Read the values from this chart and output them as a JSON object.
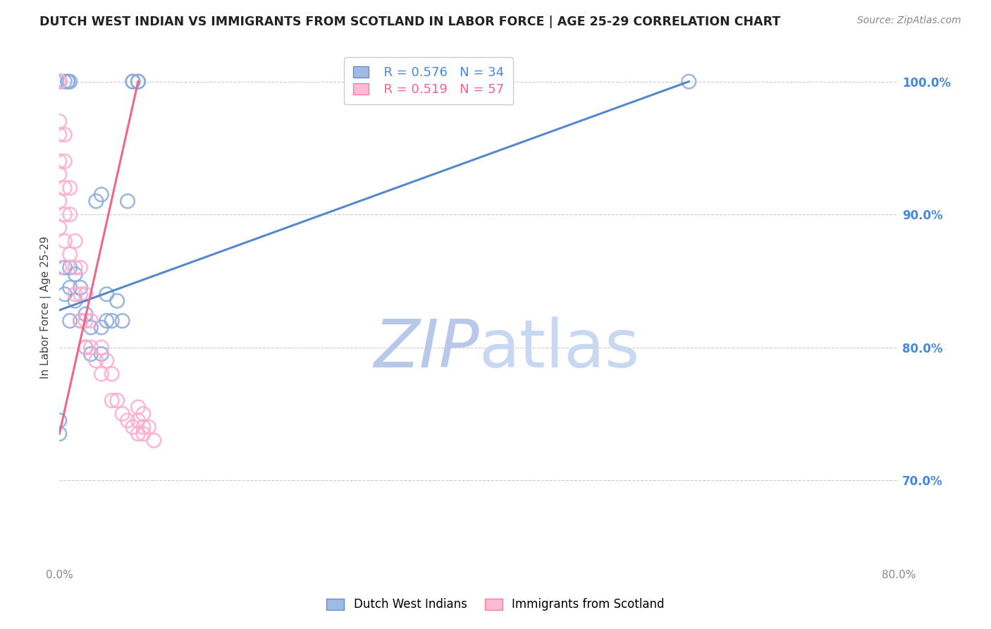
{
  "title": "DUTCH WEST INDIAN VS IMMIGRANTS FROM SCOTLAND IN LABOR FORCE | AGE 25-29 CORRELATION CHART",
  "source": "Source: ZipAtlas.com",
  "ylabel": "In Labor Force | Age 25-29",
  "right_ytick_labels": [
    "100.0%",
    "90.0%",
    "80.0%",
    "70.0%"
  ],
  "right_ytick_values": [
    1.0,
    0.9,
    0.8,
    0.7
  ],
  "xlim": [
    0.0,
    0.8
  ],
  "ylim": [
    0.635,
    1.025
  ],
  "xtick_labels": [
    "0.0%",
    "",
    "",
    "",
    "",
    "",
    "",
    "",
    "80.0%"
  ],
  "xtick_values": [
    0.0,
    0.1,
    0.2,
    0.3,
    0.4,
    0.5,
    0.6,
    0.7,
    0.8
  ],
  "blue_color": "#88AADD",
  "blue_edge_color": "#5577BB",
  "pink_color": "#FFAACC",
  "pink_edge_color": "#EE6688",
  "blue_label": "Dutch West Indians",
  "pink_label": "Immigrants from Scotland",
  "legend_blue_r": "R = 0.576",
  "legend_blue_n": "N = 34",
  "legend_pink_r": "R = 0.519",
  "legend_pink_n": "N = 57",
  "blue_trend_x": [
    0.0,
    0.6
  ],
  "blue_trend_y": [
    0.828,
    1.0
  ],
  "pink_trend_x": [
    0.0,
    0.075
  ],
  "pink_trend_y": [
    0.735,
    1.0
  ],
  "blue_x": [
    0.0,
    0.0,
    0.005,
    0.005,
    0.005,
    0.008,
    0.008,
    0.01,
    0.01,
    0.01,
    0.01,
    0.015,
    0.015,
    0.02,
    0.02,
    0.025,
    0.025,
    0.03,
    0.03,
    0.035,
    0.04,
    0.04,
    0.045,
    0.045,
    0.05,
    0.055,
    0.06,
    0.065,
    0.6,
    0.07,
    0.07,
    0.075,
    0.075,
    0.04
  ],
  "blue_y": [
    0.735,
    0.745,
    0.84,
    0.86,
    1.0,
    1.0,
    1.0,
    0.82,
    0.845,
    0.86,
    1.0,
    0.835,
    0.855,
    0.82,
    0.845,
    0.8,
    0.825,
    0.795,
    0.815,
    0.91,
    0.795,
    0.815,
    0.82,
    0.84,
    0.82,
    0.835,
    0.82,
    0.91,
    1.0,
    1.0,
    1.0,
    1.0,
    1.0,
    0.915
  ],
  "pink_x": [
    0.0,
    0.0,
    0.0,
    0.0,
    0.0,
    0.0,
    0.0,
    0.0,
    0.0,
    0.0,
    0.0,
    0.0,
    0.0,
    0.0,
    0.0,
    0.0,
    0.0,
    0.0,
    0.0,
    0.0,
    0.005,
    0.005,
    0.005,
    0.005,
    0.005,
    0.01,
    0.01,
    0.01,
    0.015,
    0.015,
    0.015,
    0.02,
    0.02,
    0.02,
    0.025,
    0.025,
    0.025,
    0.03,
    0.03,
    0.035,
    0.04,
    0.04,
    0.045,
    0.05,
    0.05,
    0.055,
    0.06,
    0.065,
    0.07,
    0.075,
    0.075,
    0.075,
    0.08,
    0.08,
    0.08,
    0.085,
    0.09
  ],
  "pink_y": [
    1.0,
    1.0,
    1.0,
    1.0,
    1.0,
    1.0,
    1.0,
    1.0,
    1.0,
    1.0,
    1.0,
    1.0,
    1.0,
    0.97,
    0.96,
    0.94,
    0.93,
    0.91,
    0.89,
    0.86,
    0.96,
    0.94,
    0.92,
    0.9,
    0.88,
    0.92,
    0.9,
    0.87,
    0.88,
    0.86,
    0.84,
    0.86,
    0.84,
    0.82,
    0.84,
    0.82,
    0.8,
    0.82,
    0.8,
    0.79,
    0.8,
    0.78,
    0.79,
    0.78,
    0.76,
    0.76,
    0.75,
    0.745,
    0.74,
    0.755,
    0.745,
    0.735,
    0.75,
    0.74,
    0.735,
    0.74,
    0.73
  ],
  "watermark_zip": "ZIP",
  "watermark_atlas": "atlas",
  "watermark_color": "#D0E0F5",
  "background_color": "#FFFFFF",
  "grid_color": "#CCCCCC",
  "title_color": "#222222",
  "right_axis_color": "#4488DD",
  "source_color": "#888888"
}
